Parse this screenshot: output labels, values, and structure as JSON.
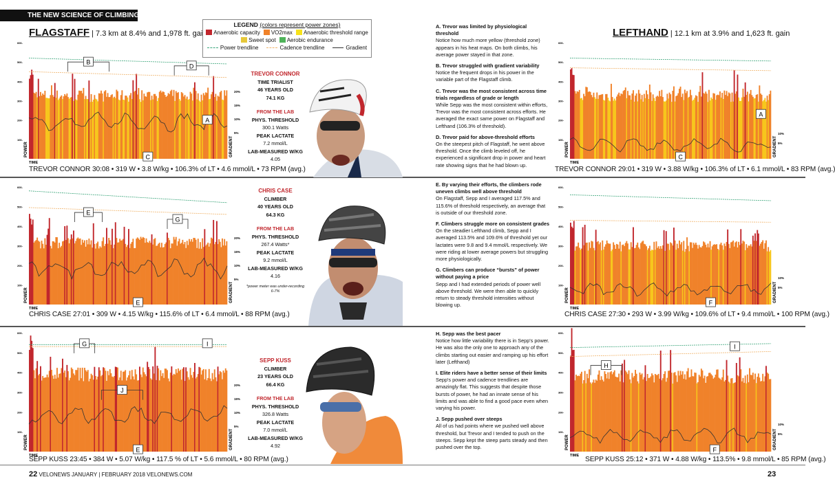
{
  "kicker": {
    "light": "THE NEW SCIENCE OF ",
    "bold": "CLIMBING"
  },
  "climbs": {
    "flagstaff": {
      "name": "FLAGSTAFF",
      "detail": "| 7.3 km at 8.4% and 1,978 ft. gain"
    },
    "lefthand": {
      "name": "LEFTHAND",
      "detail": "| 12.1 km at 3.9% and 1,623 ft. gain"
    }
  },
  "legend": {
    "title": "LEGEND",
    "subtitle": "(colors represent power zones)",
    "zones": [
      {
        "label": "Anaerobic capacity",
        "color": "#c1272d"
      },
      {
        "label": "VO2max",
        "color": "#f0822a"
      },
      {
        "label": "Anaerobic threshold range",
        "color": "#f7e21c"
      },
      {
        "label": "Sweet spot",
        "color": "#e6c83a"
      },
      {
        "label": "Aerobic endurance",
        "color": "#4fb35a"
      }
    ],
    "lines": [
      {
        "label": "Power trendline",
        "color": "#3aa57a"
      },
      {
        "label": "Cadence trendline",
        "color": "#f0b36a"
      },
      {
        "label": "Gradient",
        "color": "#333333"
      }
    ]
  },
  "axis": {
    "power": "POWER",
    "time": "TIME",
    "gradient": "GRADIENT"
  },
  "chart_data": [
    {
      "type": "bar",
      "climb": "Flagstaff",
      "rider": "Trevor Connor",
      "ylabel": "POWER",
      "xlabel": "TIME",
      "y2label": "GRADIENT",
      "yticks": [
        100,
        200,
        300,
        400,
        500,
        600
      ],
      "ylim": [
        0,
        600
      ],
      "y2ticks": [
        "5%",
        "10%",
        "15%",
        "20%"
      ],
      "avg_power": 319,
      "power_trend": [
        520,
        490
      ],
      "cadence_trend": [
        450,
        420
      ],
      "gradient_mean": 9,
      "annotations": [
        "B",
        "D",
        "A",
        "C"
      ],
      "caption": "TREVOR CONNOR 30:08 • 319 W • 3.8 W/kg • 106.3% of LT • 4.6 mmol/L • 73 RPM (avg.)"
    },
    {
      "type": "bar",
      "climb": "Lefthand",
      "rider": "Trevor Connor",
      "ylabel": "POWER",
      "xlabel": "TIME",
      "y2label": "GRADIENT",
      "yticks": [
        100,
        200,
        300,
        400,
        500,
        600
      ],
      "ylim": [
        0,
        600
      ],
      "y2ticks": [
        "5%",
        "10%"
      ],
      "avg_power": 319,
      "power_trend": [
        520,
        505
      ],
      "cadence_trend": [
        470,
        455
      ],
      "gradient_mean": 4,
      "annotations": [
        "A",
        "C"
      ],
      "caption": "TREVOR CONNOR 29:01 • 319 W • 3.88 W/kg • 106.3% of LT • 6.1 mmol/L • 83 RPM (avg.)"
    },
    {
      "type": "bar",
      "climb": "Flagstaff",
      "rider": "Chris Case",
      "ylabel": "POWER",
      "xlabel": "TIME",
      "y2label": "GRADIENT",
      "yticks": [
        100,
        200,
        300,
        400,
        500,
        600
      ],
      "ylim": [
        0,
        600
      ],
      "y2ticks": [
        "5%",
        "10%",
        "15%",
        "20%"
      ],
      "avg_power": 309,
      "power_trend": [
        580,
        520
      ],
      "cadence_trend": [
        495,
        460
      ],
      "gradient_mean": 9,
      "annotations": [
        "E",
        "G",
        "E"
      ],
      "caption": "CHRIS CASE 27:01 • 309 W • 4.15 W/kg • 115.6% of LT • 6.4 mmol/L • 88 RPM (avg.)"
    },
    {
      "type": "bar",
      "climb": "Lefthand",
      "rider": "Chris Case",
      "ylabel": "POWER",
      "xlabel": "TIME",
      "y2label": "GRADIENT",
      "yticks": [
        100,
        200,
        300,
        400,
        500,
        600
      ],
      "ylim": [
        0,
        600
      ],
      "y2ticks": [
        "5%",
        "10%"
      ],
      "avg_power": 293,
      "power_trend": [
        560,
        530
      ],
      "cadence_trend": [
        430,
        420
      ],
      "gradient_mean": 4,
      "annotations": [
        "F"
      ],
      "caption": "CHRIS CASE 27:30 • 293 W • 3.99 W/kg • 109.6% of LT • 9.4 mmol/L • 100 RPM (avg.)"
    },
    {
      "type": "bar",
      "climb": "Flagstaff",
      "rider": "Sepp Kuss",
      "ylabel": "POWER",
      "xlabel": "TIME",
      "y2label": "GRADIENT",
      "yticks": [
        100,
        200,
        300,
        400,
        500,
        600
      ],
      "ylim": [
        0,
        600
      ],
      "y2ticks": [
        "5%",
        "10%",
        "15%",
        "20%"
      ],
      "avg_power": 384,
      "power_trend": [
        540,
        540
      ],
      "cadence_trend": [
        530,
        530
      ],
      "gradient_mean": 9,
      "annotations": [
        "G",
        "I",
        "J",
        "E"
      ],
      "caption": "SEPP KUSS 23:45 • 384 W • 5.07 W/kg • 117.5 % of LT • 5.6 mmol/L • 80 RPM (avg.)"
    },
    {
      "type": "bar",
      "climb": "Lefthand",
      "rider": "Sepp Kuss",
      "ylabel": "POWER",
      "xlabel": "TIME",
      "y2label": "GRADIENT",
      "yticks": [
        100,
        200,
        300,
        400,
        500,
        600
      ],
      "ylim": [
        0,
        600
      ],
      "y2ticks": [
        "5%",
        "10%"
      ],
      "avg_power": 371,
      "power_trend": [
        525,
        545
      ],
      "cadence_trend": [
        480,
        505
      ],
      "gradient_mean": 4,
      "annotations": [
        "H",
        "I",
        "F"
      ],
      "caption": "SEPP KUSS 25:12 • 371 W • 4.88 W/kg • 113.5% • 9.8 mmol/L • 85 RPM (avg.)"
    }
  ],
  "riders": [
    {
      "name": "TREVOR CONNOR",
      "role": "TIME TRIALIST",
      "age": "46 YEARS OLD",
      "weight": "74.1 KG",
      "lab": "FROM THE LAB",
      "threshold_label": "PHYS. THRESHOLD",
      "threshold": "300.1 Watts",
      "lactate_label": "PEAK LACTATE",
      "lactate": "7.2 mmol/L",
      "wkg_label": "LAB-MEASURED W/KG",
      "wkg": "4.05"
    },
    {
      "name": "CHRIS CASE",
      "role": "CLIMBER",
      "age": "40 YEARS OLD",
      "weight": "64.3 KG",
      "lab": "FROM THE LAB",
      "threshold_label": "PHYS. THRESHOLD",
      "threshold": "267.4 Watts*",
      "lactate_label": "PEAK LACTATE",
      "lactate": "9.2 mmol/L",
      "wkg_label": "LAB-MEASURED W/KG",
      "wkg": "4.16",
      "note": "*power meter was under-recording 6-7%"
    },
    {
      "name": "SEPP KUSS",
      "role": "CLIMBER",
      "age": "23 YEARS OLD",
      "weight": "66.4 KG",
      "lab": "FROM THE LAB",
      "threshold_label": "PHYS. THRESHOLD",
      "threshold": "326.8 Watts",
      "lactate_label": "PEAK LACTATE",
      "lactate": "7.0 mmol/L",
      "wkg_label": "LAB-MEASURED W/KG",
      "wkg": "4.92"
    }
  ],
  "notes": [
    {
      "title": "A. Trevor was limited by physiological threshold",
      "body": "Notice how much more yellow (threshold zone) appears in his heat maps. On both climbs, his average power stayed in that zone."
    },
    {
      "title": "B. Trevor struggled with gradient variability",
      "body": "Notice the frequent drops in his power in the variable part of the Flagstaff climb."
    },
    {
      "title": "C. Trevor was the most consistent across time trials regardless of grade or length",
      "body": "While Sepp was the most consistent within efforts, Trevor was the most consistent across efforts. He averaged the exact same power on Flagstaff and Lefthand (106.3% of threshold)."
    },
    {
      "title": "D. Trevor paid for above-threshold efforts",
      "body": "On the steepest pitch of Flagstaff, he went above threshold. Once the climb leveled off, he experienced a significant drop in power and heart rate showing signs that he had blown up."
    },
    {
      "title": "E. By varying their efforts, the climbers rode uneven climbs well above threshold",
      "body": "On Flagstaff, Sepp and I averaged 117.5% and 115.6% of threshold respectively, an average that is outside of our threshold zone."
    },
    {
      "title": "F. Climbers struggle more on consistent grades",
      "body": "On the steadier Lefthand climb, Sepp and I averaged 113.5% and 109.6% of threshold yet our lactates were 9.8 and 9.4 mmol/L respectively. We were riding at lower average powers but struggling more physiologically."
    },
    {
      "title": "G. Climbers can produce “bursts” of power without paying a price",
      "body": "Sepp and I had extended periods of power well above threshold. We were then able to quickly return to steady threshold intensities without blowing up."
    },
    {
      "title": "H. Sepp was the best pacer",
      "body": "Notice how little variability there is in Sepp's power. He was also the only one to approach any of the climbs starting out easier and ramping up his effort later (Lefthand)"
    },
    {
      "title": "I. Elite riders have a better sense of their limits",
      "body": "Sepp's power and cadence trendlines are amazingly flat. This suggests that despite those bursts of power, he had an innate sense of his limits and was able to find a good pace even when varying his power."
    },
    {
      "title": "J. Sepp pushed over steeps",
      "body": "All of us had points where we pushed well above threshold, but Trevor and I tended to push on the steeps. Sepp kept the steep parts steady and then pushed over the top."
    }
  ],
  "folio": {
    "left_page": "22",
    "left_text": "VELONEWS  JANUARY | FEBRUARY 2018  VELONEWS.COM",
    "right_page": "23"
  }
}
